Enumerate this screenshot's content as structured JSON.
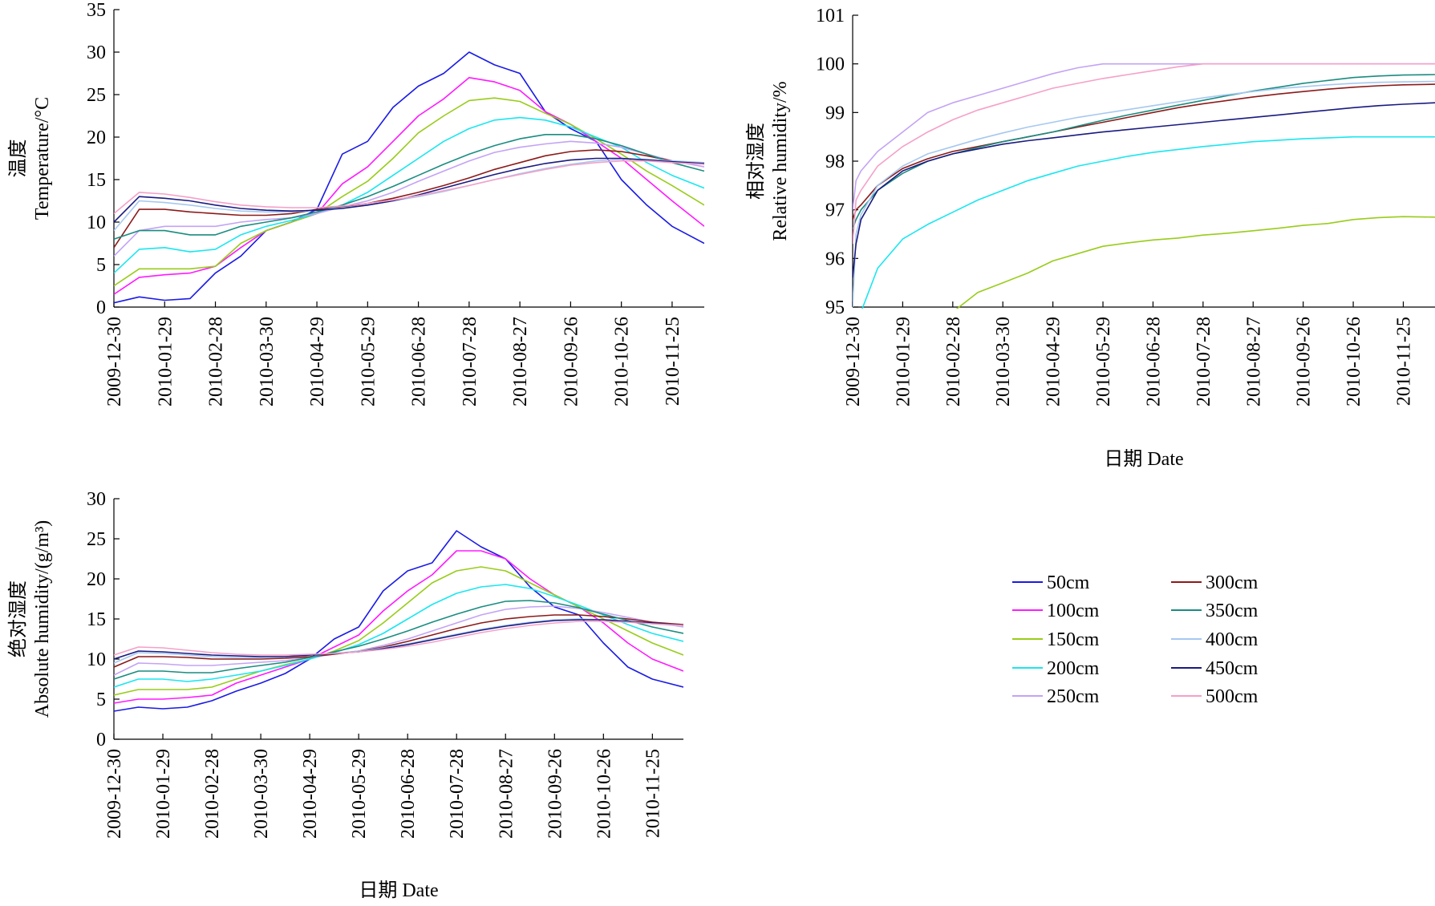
{
  "legend": {
    "entries": [
      {
        "name": "50cm",
        "color": "#1a1ae6"
      },
      {
        "name": "100cm",
        "color": "#ff1aff"
      },
      {
        "name": "150cm",
        "color": "#99cc1a"
      },
      {
        "name": "200cm",
        "color": "#1ae6f0"
      },
      {
        "name": "250cm",
        "color": "#c3a3f5"
      },
      {
        "name": "300cm",
        "color": "#8c1a1a"
      },
      {
        "name": "350cm",
        "color": "#1a8c80"
      },
      {
        "name": "400cm",
        "color": "#a6c8f0"
      },
      {
        "name": "450cm",
        "color": "#1a1a80"
      },
      {
        "name": "500cm",
        "color": "#f5a0c8"
      }
    ]
  },
  "chart_data": [
    {
      "type": "line",
      "ylabel_cn": "温度",
      "ylabel_en": "Temperature/°C",
      "xlabel": "",
      "ylim": [
        0,
        35
      ],
      "yticks": [
        0,
        5,
        10,
        15,
        20,
        25,
        30,
        35
      ],
      "xticks": [
        "2009-12-30",
        "2010-01-29",
        "2010-02-28",
        "2010-03-30",
        "2010-04-29",
        "2010-05-29",
        "2010-06-28",
        "2010-07-28",
        "2010-08-27",
        "2010-09-26",
        "2010-10-26",
        "2010-11-25"
      ],
      "xlim": [
        "2009-12-30",
        "2010-12-14"
      ],
      "x": [
        "2009-12-30",
        "2010-01-14",
        "2010-01-29",
        "2010-02-13",
        "2010-02-28",
        "2010-03-15",
        "2010-03-30",
        "2010-04-14",
        "2010-04-29",
        "2010-05-14",
        "2010-05-29",
        "2010-06-13",
        "2010-06-28",
        "2010-07-13",
        "2010-07-28",
        "2010-08-12",
        "2010-08-27",
        "2010-09-11",
        "2010-09-26",
        "2010-10-11",
        "2010-10-26",
        "2010-11-10",
        "2010-11-25",
        "2010-12-14"
      ],
      "series": [
        {
          "name": "50cm",
          "values": [
            0.5,
            1.2,
            0.8,
            1.0,
            4.0,
            6.0,
            9.0,
            10.0,
            11.5,
            18.0,
            19.5,
            23.5,
            26.0,
            27.5,
            30.0,
            28.5,
            27.5,
            23.0,
            21.0,
            19.5,
            15.0,
            12.0,
            9.5,
            7.5
          ]
        },
        {
          "name": "100cm",
          "values": [
            1.5,
            3.5,
            3.8,
            4.0,
            4.8,
            7.0,
            9.0,
            10.0,
            11.0,
            14.5,
            16.5,
            19.5,
            22.5,
            24.5,
            27.0,
            26.5,
            25.5,
            23.0,
            21.5,
            19.5,
            17.5,
            15.0,
            12.5,
            9.5
          ]
        },
        {
          "name": "150cm",
          "values": [
            2.5,
            4.5,
            4.5,
            4.5,
            4.8,
            7.5,
            9.0,
            10.0,
            11.0,
            13.0,
            14.8,
            17.5,
            20.5,
            22.5,
            24.3,
            24.6,
            24.2,
            22.8,
            21.5,
            19.8,
            18.0,
            16.0,
            14.3,
            12.0
          ]
        },
        {
          "name": "200cm",
          "values": [
            4.0,
            6.8,
            7.0,
            6.5,
            6.8,
            8.5,
            9.5,
            10.2,
            11.0,
            12.0,
            13.5,
            15.5,
            17.5,
            19.5,
            21.0,
            22.0,
            22.3,
            22.0,
            21.2,
            20.0,
            18.8,
            17.0,
            15.5,
            14.0
          ]
        },
        {
          "name": "250cm",
          "values": [
            6.0,
            9.0,
            9.5,
            9.5,
            9.5,
            10.0,
            10.3,
            10.5,
            11.0,
            11.8,
            12.5,
            13.5,
            14.8,
            16.0,
            17.2,
            18.2,
            18.8,
            19.2,
            19.5,
            19.3,
            18.8,
            18.0,
            17.2,
            16.5
          ]
        },
        {
          "name": "300cm",
          "values": [
            7.0,
            11.5,
            11.5,
            11.2,
            11.0,
            10.8,
            10.8,
            11.0,
            11.5,
            11.8,
            12.2,
            12.8,
            13.5,
            14.3,
            15.2,
            16.2,
            17.0,
            17.8,
            18.3,
            18.5,
            18.3,
            17.8,
            17.2,
            16.8
          ]
        },
        {
          "name": "350cm",
          "values": [
            8.0,
            9.0,
            9.0,
            8.5,
            8.5,
            9.5,
            10.0,
            10.5,
            11.2,
            12.0,
            13.0,
            14.2,
            15.5,
            16.8,
            18.0,
            19.0,
            19.8,
            20.3,
            20.3,
            19.8,
            19.0,
            18.0,
            17.0,
            16.0
          ]
        },
        {
          "name": "400cm",
          "values": [
            9.0,
            12.5,
            12.3,
            12.0,
            11.6,
            11.3,
            11.2,
            11.2,
            11.4,
            11.7,
            12.0,
            12.5,
            13.0,
            13.6,
            14.3,
            15.0,
            15.7,
            16.3,
            16.8,
            17.2,
            17.4,
            17.4,
            17.2,
            17.0
          ]
        },
        {
          "name": "450cm",
          "values": [
            10.0,
            13.0,
            12.8,
            12.5,
            12.0,
            11.6,
            11.4,
            11.3,
            11.4,
            11.6,
            12.0,
            12.5,
            13.2,
            14.0,
            14.8,
            15.6,
            16.3,
            16.9,
            17.3,
            17.5,
            17.5,
            17.3,
            17.1,
            16.9
          ]
        },
        {
          "name": "500cm",
          "values": [
            11.0,
            13.5,
            13.3,
            12.9,
            12.4,
            12.0,
            11.8,
            11.7,
            11.7,
            11.9,
            12.2,
            12.6,
            13.1,
            13.7,
            14.3,
            15.0,
            15.6,
            16.2,
            16.7,
            17.0,
            17.2,
            17.2,
            17.0,
            16.8
          ]
        }
      ]
    },
    {
      "type": "line",
      "ylabel_cn": "相对湿度",
      "ylabel_en": "Relative humidity/%",
      "xlabel": "日期 Date",
      "ylim": [
        95,
        101
      ],
      "yticks": [
        95,
        96,
        97,
        98,
        99,
        100,
        101
      ],
      "xticks": [
        "2009-12-30",
        "2010-01-29",
        "2010-02-28",
        "2010-03-30",
        "2010-04-29",
        "2010-05-29",
        "2010-06-28",
        "2010-07-28",
        "2010-08-27",
        "2010-09-26",
        "2010-10-26",
        "2010-11-25"
      ],
      "xlim": [
        "2009-12-30",
        "2010-12-14"
      ],
      "x": [
        "2009-12-30",
        "2010-01-01",
        "2010-01-04",
        "2010-01-14",
        "2010-01-29",
        "2010-02-13",
        "2010-02-28",
        "2010-03-15",
        "2010-03-30",
        "2010-04-14",
        "2010-04-29",
        "2010-05-14",
        "2010-05-29",
        "2010-06-13",
        "2010-06-28",
        "2010-07-13",
        "2010-07-28",
        "2010-08-12",
        "2010-08-27",
        "2010-09-11",
        "2010-09-26",
        "2010-10-11",
        "2010-10-26",
        "2010-11-10",
        "2010-11-25",
        "2010-12-14"
      ],
      "series": [
        {
          "name": "150cm",
          "values": [
            null,
            null,
            null,
            null,
            null,
            null,
            94.9,
            95.3,
            95.5,
            95.7,
            95.95,
            96.1,
            96.25,
            96.32,
            96.38,
            96.42,
            96.48,
            96.52,
            96.57,
            96.62,
            96.68,
            96.72,
            96.8,
            96.84,
            96.86,
            96.85
          ]
        },
        {
          "name": "200cm",
          "values": [
            null,
            null,
            94.9,
            95.8,
            96.4,
            96.7,
            96.95,
            97.2,
            97.4,
            97.6,
            97.75,
            97.9,
            98.0,
            98.1,
            98.18,
            98.24,
            98.3,
            98.35,
            98.4,
            98.43,
            98.46,
            98.48,
            98.5,
            98.5,
            98.5,
            98.5
          ]
        },
        {
          "name": "250cm",
          "values": [
            97.0,
            97.6,
            97.8,
            98.2,
            98.6,
            99.0,
            99.2,
            99.35,
            99.5,
            99.65,
            99.8,
            99.92,
            100.0,
            100.0,
            100.0,
            100.0,
            100.0,
            100.0,
            100.0,
            100.0,
            100.0,
            100.0,
            100.0,
            100.0,
            100.0,
            100.0
          ]
        },
        {
          "name": "300cm",
          "values": [
            96.8,
            97.0,
            97.1,
            97.5,
            97.85,
            98.05,
            98.2,
            98.3,
            98.4,
            98.5,
            98.6,
            98.7,
            98.8,
            98.9,
            99.0,
            99.1,
            99.18,
            99.25,
            99.32,
            99.38,
            99.43,
            99.48,
            99.52,
            99.55,
            99.57,
            99.58
          ]
        },
        {
          "name": "350cm",
          "values": [
            96.6,
            96.8,
            97.0,
            97.4,
            97.75,
            98.0,
            98.15,
            98.28,
            98.4,
            98.5,
            98.6,
            98.72,
            98.84,
            98.95,
            99.05,
            99.15,
            99.25,
            99.35,
            99.44,
            99.52,
            99.6,
            99.66,
            99.72,
            99.75,
            99.77,
            99.78
          ]
        },
        {
          "name": "400cm",
          "values": [
            95.0,
            96.5,
            96.9,
            97.5,
            97.9,
            98.15,
            98.3,
            98.45,
            98.58,
            98.7,
            98.8,
            98.9,
            98.98,
            99.06,
            99.14,
            99.22,
            99.3,
            99.37,
            99.43,
            99.49,
            99.53,
            99.57,
            99.6,
            99.62,
            99.63,
            99.64
          ]
        },
        {
          "name": "450cm",
          "values": [
            95.6,
            96.3,
            96.8,
            97.4,
            97.8,
            98.0,
            98.15,
            98.25,
            98.35,
            98.42,
            98.48,
            98.54,
            98.6,
            98.65,
            98.7,
            98.75,
            98.8,
            98.85,
            98.9,
            98.95,
            99.0,
            99.05,
            99.1,
            99.14,
            99.17,
            99.2
          ]
        },
        {
          "name": "500cm",
          "values": [
            96.3,
            97.2,
            97.4,
            97.9,
            98.3,
            98.6,
            98.85,
            99.05,
            99.2,
            99.35,
            99.5,
            99.6,
            99.7,
            99.78,
            99.86,
            99.94,
            100.0,
            100.0,
            100.0,
            100.0,
            100.0,
            100.0,
            100.0,
            100.0,
            100.0,
            100.0
          ]
        }
      ]
    },
    {
      "type": "line",
      "ylabel_cn": "绝对湿度",
      "ylabel_en": "Absolute humidity/(g/m³)",
      "xlabel": "日期 Date",
      "ylim": [
        0,
        30
      ],
      "yticks": [
        0,
        5,
        10,
        15,
        20,
        25,
        30
      ],
      "xticks": [
        "2009-12-30",
        "2010-01-29",
        "2010-02-28",
        "2010-03-30",
        "2010-04-29",
        "2010-05-29",
        "2010-06-28",
        "2010-07-28",
        "2010-08-27",
        "2010-09-26",
        "2010-10-26",
        "2010-11-25"
      ],
      "xlim": [
        "2009-12-30",
        "2010-12-14"
      ],
      "x": [
        "2009-12-30",
        "2010-01-14",
        "2010-01-29",
        "2010-02-13",
        "2010-02-28",
        "2010-03-15",
        "2010-03-30",
        "2010-04-14",
        "2010-04-29",
        "2010-05-14",
        "2010-05-29",
        "2010-06-13",
        "2010-06-28",
        "2010-07-13",
        "2010-07-28",
        "2010-08-12",
        "2010-08-27",
        "2010-09-11",
        "2010-09-26",
        "2010-10-11",
        "2010-10-26",
        "2010-11-10",
        "2010-11-25",
        "2010-12-14"
      ],
      "series": [
        {
          "name": "50cm",
          "values": [
            3.5,
            4.0,
            3.8,
            4.0,
            4.8,
            6.0,
            7.0,
            8.2,
            10.0,
            12.5,
            14.0,
            18.5,
            21.0,
            22.0,
            26.0,
            24.0,
            22.5,
            19.0,
            16.5,
            15.5,
            12.0,
            9.0,
            7.5,
            6.5
          ]
        },
        {
          "name": "100cm",
          "values": [
            4.5,
            5.0,
            5.0,
            5.2,
            5.5,
            7.0,
            8.0,
            9.0,
            10.0,
            11.5,
            13.0,
            16.0,
            18.5,
            20.5,
            23.5,
            23.5,
            22.5,
            20.0,
            18.0,
            16.5,
            14.5,
            12.0,
            10.0,
            8.5
          ]
        },
        {
          "name": "150cm",
          "values": [
            5.5,
            6.2,
            6.2,
            6.2,
            6.5,
            7.5,
            8.5,
            9.3,
            10.0,
            11.0,
            12.3,
            14.5,
            17.0,
            19.5,
            21.0,
            21.5,
            21.0,
            19.5,
            18.0,
            16.5,
            15.0,
            13.5,
            12.0,
            10.5
          ]
        },
        {
          "name": "200cm",
          "values": [
            6.5,
            7.5,
            7.5,
            7.2,
            7.5,
            8.0,
            8.5,
            9.2,
            10.0,
            10.8,
            11.8,
            13.2,
            15.0,
            16.8,
            18.2,
            19.0,
            19.3,
            18.8,
            17.8,
            16.7,
            15.5,
            14.3,
            13.2,
            12.2
          ]
        },
        {
          "name": "250cm",
          "values": [
            8.0,
            9.5,
            9.4,
            9.2,
            9.2,
            9.4,
            9.6,
            9.8,
            10.2,
            10.6,
            11.0,
            11.7,
            12.5,
            13.5,
            14.5,
            15.5,
            16.2,
            16.5,
            16.6,
            16.3,
            15.8,
            15.2,
            14.6,
            14.0
          ]
        },
        {
          "name": "300cm",
          "values": [
            9.0,
            10.3,
            10.3,
            10.2,
            10.0,
            10.0,
            10.0,
            10.1,
            10.3,
            10.6,
            11.0,
            11.5,
            12.2,
            13.0,
            13.8,
            14.5,
            15.0,
            15.3,
            15.5,
            15.5,
            15.3,
            15.0,
            14.6,
            14.3
          ]
        },
        {
          "name": "350cm",
          "values": [
            7.5,
            8.5,
            8.5,
            8.3,
            8.3,
            8.8,
            9.2,
            9.6,
            10.2,
            10.9,
            11.6,
            12.5,
            13.5,
            14.6,
            15.6,
            16.5,
            17.2,
            17.3,
            17.0,
            16.4,
            15.6,
            14.8,
            14.0,
            13.2
          ]
        },
        {
          "name": "400cm",
          "values": [
            9.5,
            10.8,
            10.7,
            10.5,
            10.3,
            10.2,
            10.2,
            10.3,
            10.5,
            10.7,
            11.0,
            11.4,
            11.9,
            12.5,
            13.1,
            13.7,
            14.2,
            14.6,
            14.9,
            15.0,
            14.9,
            14.7,
            14.4,
            14.1
          ]
        },
        {
          "name": "450cm",
          "values": [
            10.0,
            11.0,
            10.9,
            10.7,
            10.5,
            10.4,
            10.3,
            10.3,
            10.5,
            10.7,
            10.9,
            11.3,
            11.8,
            12.4,
            13.0,
            13.6,
            14.1,
            14.5,
            14.8,
            14.9,
            14.9,
            14.7,
            14.5,
            14.2
          ]
        },
        {
          "name": "500cm",
          "values": [
            10.5,
            11.5,
            11.4,
            11.1,
            10.8,
            10.6,
            10.5,
            10.5,
            10.6,
            10.7,
            10.9,
            11.2,
            11.6,
            12.1,
            12.7,
            13.3,
            13.8,
            14.2,
            14.5,
            14.7,
            14.7,
            14.6,
            14.4,
            14.2
          ]
        }
      ]
    }
  ]
}
